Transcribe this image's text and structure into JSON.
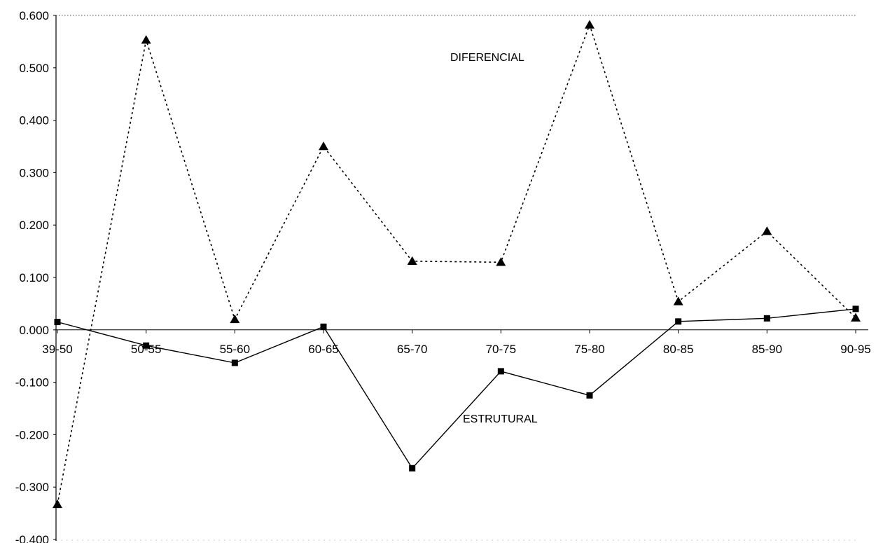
{
  "chart_data": {
    "type": "line",
    "title": "",
    "xlabel": "",
    "ylabel": "",
    "categories": [
      "39-50",
      "50-55",
      "55-60",
      "60-65",
      "65-70",
      "70-75",
      "75-80",
      "80-85",
      "85-90",
      "90-95"
    ],
    "ylim": [
      -0.4,
      0.6
    ],
    "yticks": [
      "0.600",
      "0.500",
      "0.400",
      "0.300",
      "0.200",
      "0.100",
      "0.000",
      "-0.100",
      "-0.200",
      "-0.300",
      "-0.400"
    ],
    "grid": false,
    "legend": "none",
    "series": [
      {
        "name": "DIFERENCIAL",
        "marker": "triangle",
        "line_style": "dotted",
        "color": "#000000",
        "values": [
          -0.333,
          0.553,
          0.02,
          0.35,
          0.131,
          0.129,
          0.582,
          0.054,
          0.188,
          0.023
        ]
      },
      {
        "name": "ESTRUTURAL",
        "marker": "square",
        "line_style": "solid",
        "color": "#000000",
        "values": [
          0.015,
          -0.03,
          -0.063,
          0.006,
          -0.264,
          -0.079,
          -0.125,
          0.016,
          0.022,
          0.04
        ]
      }
    ]
  }
}
